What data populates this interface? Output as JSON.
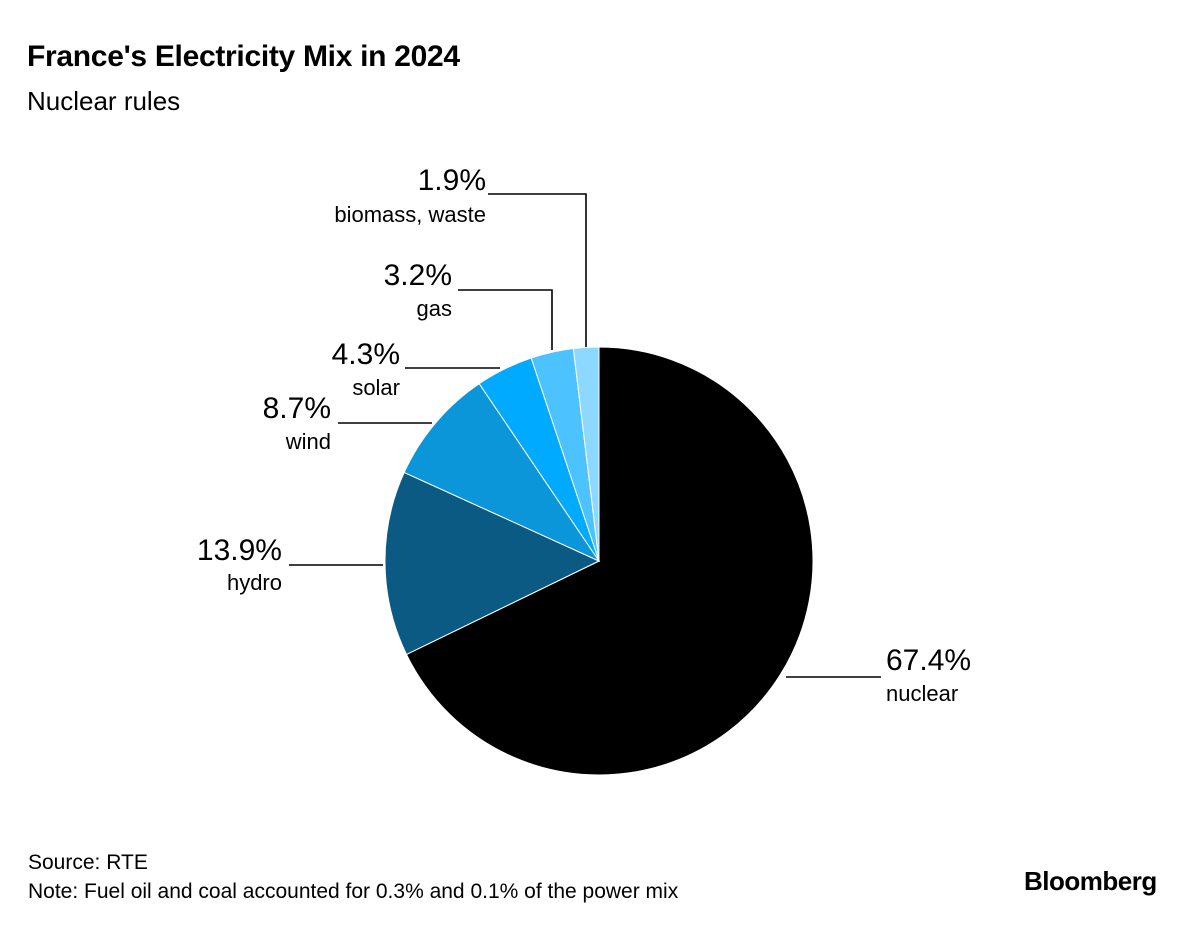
{
  "title": "France's Electricity Mix in 2024",
  "subtitle": "Nuclear rules",
  "source": "Source: RTE",
  "note": "Note: Fuel oil and coal accounted for 0.3% and 0.1% of the power mix",
  "brand": "Bloomberg",
  "chart_data": {
    "type": "pie",
    "title": "France's Electricity Mix in 2024",
    "subtitle": "Nuclear rules",
    "start": "12 o'clock, clockwise",
    "slices": [
      {
        "key": "nuclear",
        "label": "nuclear",
        "value": 67.4,
        "value_label": "67.4%",
        "color": "#000000"
      },
      {
        "key": "hydro",
        "label": "hydro",
        "value": 13.9,
        "value_label": "13.9%",
        "color": "#0a5a84"
      },
      {
        "key": "wind",
        "label": "wind",
        "value": 8.7,
        "value_label": "8.7%",
        "color": "#0a96d8"
      },
      {
        "key": "solar",
        "label": "solar",
        "value": 4.3,
        "value_label": "4.3%",
        "color": "#00aaff"
      },
      {
        "key": "gas",
        "label": "gas",
        "value": 3.2,
        "value_label": "3.2%",
        "color": "#4cc3ff"
      },
      {
        "key": "biomass",
        "label": "biomass, waste",
        "value": 1.9,
        "value_label": "1.9%",
        "color": "#8dd8ff"
      }
    ]
  }
}
